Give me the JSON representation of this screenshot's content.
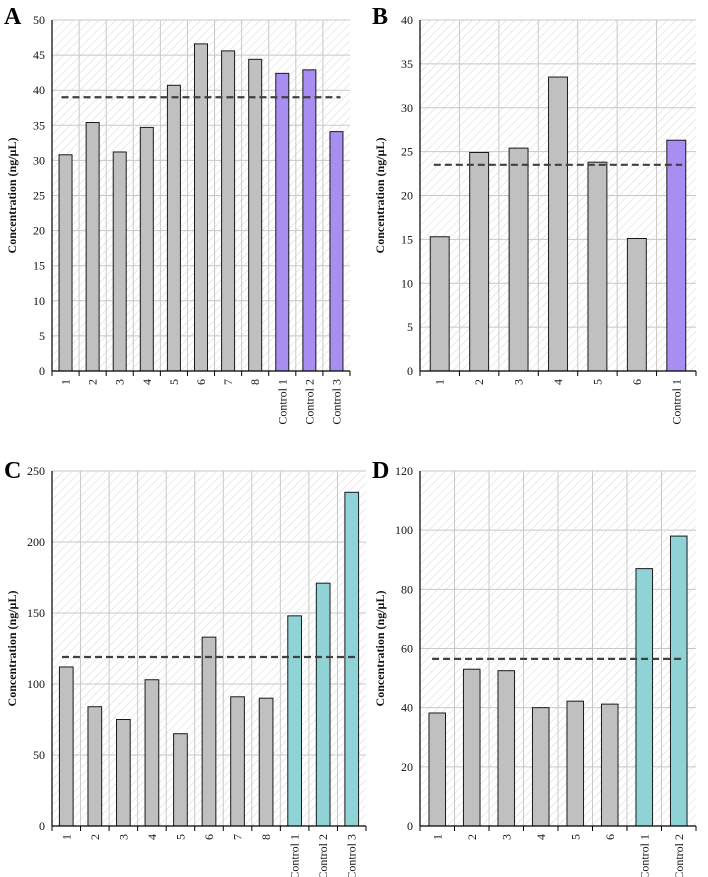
{
  "colors": {
    "gray_bar": "#c0c0c0",
    "purple_bar": "#a78ef0",
    "teal_bar": "#8fd3d6",
    "bar_stroke": "#1a1a1a",
    "grid": "#c8c8c8",
    "hatch": "#d6d6d6",
    "dashed_line": "#404040"
  },
  "chart_data": [
    {
      "panel": "A",
      "type": "bar",
      "categories": [
        "1",
        "2",
        "3",
        "4",
        "5",
        "6",
        "7",
        "8",
        "Control 1",
        "Control 2",
        "Control 3"
      ],
      "values": [
        30.8,
        35.4,
        31.2,
        34.7,
        40.7,
        46.6,
        45.6,
        44.4,
        42.4,
        42.9,
        34.1
      ],
      "highlight": [
        false,
        false,
        false,
        false,
        false,
        false,
        false,
        false,
        true,
        true,
        true
      ],
      "highlight_color": "purple",
      "reference_line": 39,
      "ylabel": "Concentration (ng/µL)",
      "ylim": [
        0,
        50
      ],
      "yticks": [
        "0",
        "5",
        "10",
        "15",
        "20",
        "25",
        "30",
        "35",
        "40",
        "45",
        "50"
      ],
      "grid": true
    },
    {
      "panel": "B",
      "type": "bar",
      "categories": [
        "1",
        "2",
        "3",
        "4",
        "5",
        "6",
        "Control 1"
      ],
      "values": [
        15.3,
        24.9,
        25.4,
        33.5,
        23.8,
        15.1,
        26.3
      ],
      "highlight": [
        false,
        false,
        false,
        false,
        false,
        false,
        true
      ],
      "highlight_color": "purple",
      "reference_line": 23.5,
      "ylabel": "Concentration (ng/µL)",
      "ylim": [
        0,
        40
      ],
      "yticks": [
        "0",
        "5",
        "10",
        "15",
        "20",
        "25",
        "30",
        "35",
        "40"
      ],
      "grid": true
    },
    {
      "panel": "C",
      "type": "bar",
      "categories": [
        "1",
        "2",
        "3",
        "4",
        "5",
        "6",
        "7",
        "8",
        "Control 1",
        "Control 2",
        "Control 3"
      ],
      "values": [
        112,
        84,
        75,
        103,
        65,
        133,
        91,
        90,
        148,
        171,
        235
      ],
      "highlight": [
        false,
        false,
        false,
        false,
        false,
        false,
        false,
        false,
        true,
        true,
        true
      ],
      "highlight_color": "teal",
      "reference_line": 119,
      "ylabel": "Concentration (ng/µL)",
      "ylim": [
        0,
        250
      ],
      "yticks": [
        "0",
        "50",
        "100",
        "150",
        "200",
        "250"
      ],
      "grid": true
    },
    {
      "panel": "D",
      "type": "bar",
      "categories": [
        "1",
        "2",
        "3",
        "4",
        "5",
        "6",
        "Control 1",
        "Control 2"
      ],
      "values": [
        38.2,
        53,
        52.5,
        40,
        42.2,
        41.2,
        87,
        98
      ],
      "highlight": [
        false,
        false,
        false,
        false,
        false,
        false,
        true,
        true
      ],
      "highlight_color": "teal",
      "reference_line": 56.5,
      "ylabel": "Concentration (ng/µL)",
      "ylim": [
        0,
        120
      ],
      "yticks": [
        "0",
        "20",
        "40",
        "60",
        "80",
        "100",
        "120"
      ],
      "grid": true
    }
  ]
}
